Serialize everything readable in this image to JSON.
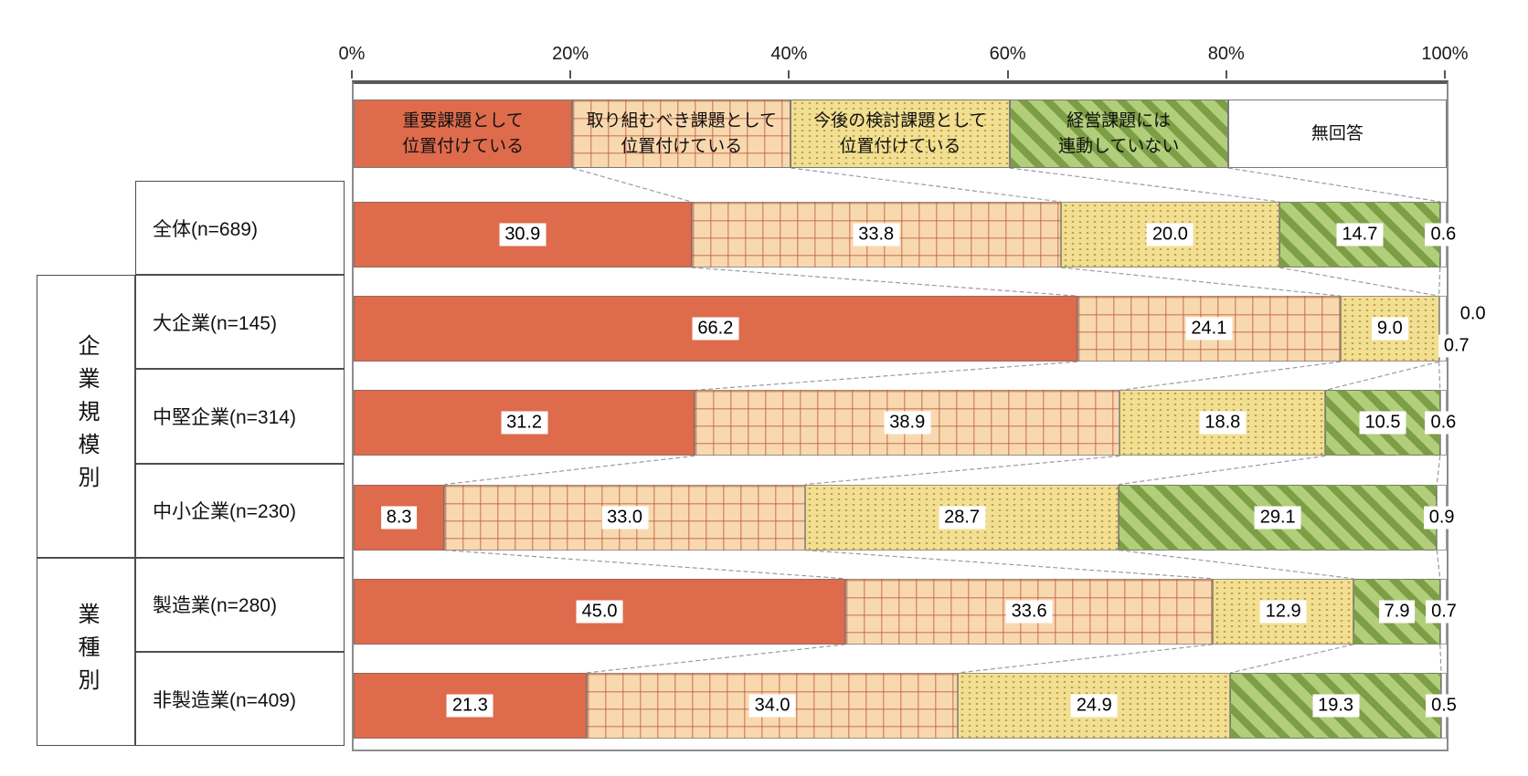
{
  "chart_data": {
    "type": "bar",
    "orientation": "horizontal",
    "stacked": true,
    "unit": "%",
    "x_axis": {
      "min": 0,
      "max": 100,
      "ticks": [
        "0%",
        "20%",
        "40%",
        "60%",
        "80%",
        "100%"
      ]
    },
    "legend_position": "top-inside",
    "legend": [
      {
        "key": "solid",
        "lines": [
          "重要課題として",
          "位置付けている"
        ]
      },
      {
        "key": "grid",
        "lines": [
          "取り組むべき課題として",
          "位置付けている"
        ]
      },
      {
        "key": "dots",
        "lines": [
          "今後の検討課題として",
          "位置付けている"
        ]
      },
      {
        "key": "stripes",
        "lines": [
          "経営課題には",
          "連動していない"
        ]
      },
      {
        "key": "none",
        "lines": [
          "無回答"
        ]
      }
    ],
    "groups": [
      {
        "label": "",
        "rows": [
          {
            "label": "全体(n=689)",
            "values": [
              30.9,
              33.8,
              20.0,
              14.7,
              0.6
            ]
          }
        ]
      },
      {
        "label": "企業規模別",
        "rows": [
          {
            "label": "大企業(n=145)",
            "values": [
              66.2,
              24.1,
              9.0,
              0.0,
              0.7
            ]
          },
          {
            "label": "中堅企業(n=314)",
            "values": [
              31.2,
              38.9,
              18.8,
              10.5,
              0.6
            ]
          },
          {
            "label": "中小企業(n=230)",
            "values": [
              8.3,
              33.0,
              28.7,
              29.1,
              0.9
            ]
          }
        ]
      },
      {
        "label": "業種別",
        "rows": [
          {
            "label": "製造業(n=280)",
            "values": [
              45.0,
              33.6,
              12.9,
              7.9,
              0.7
            ]
          },
          {
            "label": "非製造業(n=409)",
            "values": [
              21.3,
              34.0,
              24.9,
              19.3,
              0.5
            ]
          }
        ]
      }
    ]
  },
  "colors": {
    "solid_fill": "#DE6B4C",
    "grid_bg": "#F8D9AF",
    "grid_line": "rgba(190,85,58,0.55)",
    "dots_bg": "#F2DF92",
    "dots_dot": "#BCA04E",
    "stripes_bg": "#B2CE7B",
    "stripes_line": "#7C9E45",
    "white_fill": "#FFFFFF",
    "plot_border": "#8C8C8C",
    "leader_line": "#9B9B9B",
    "label_text": "#000000"
  }
}
